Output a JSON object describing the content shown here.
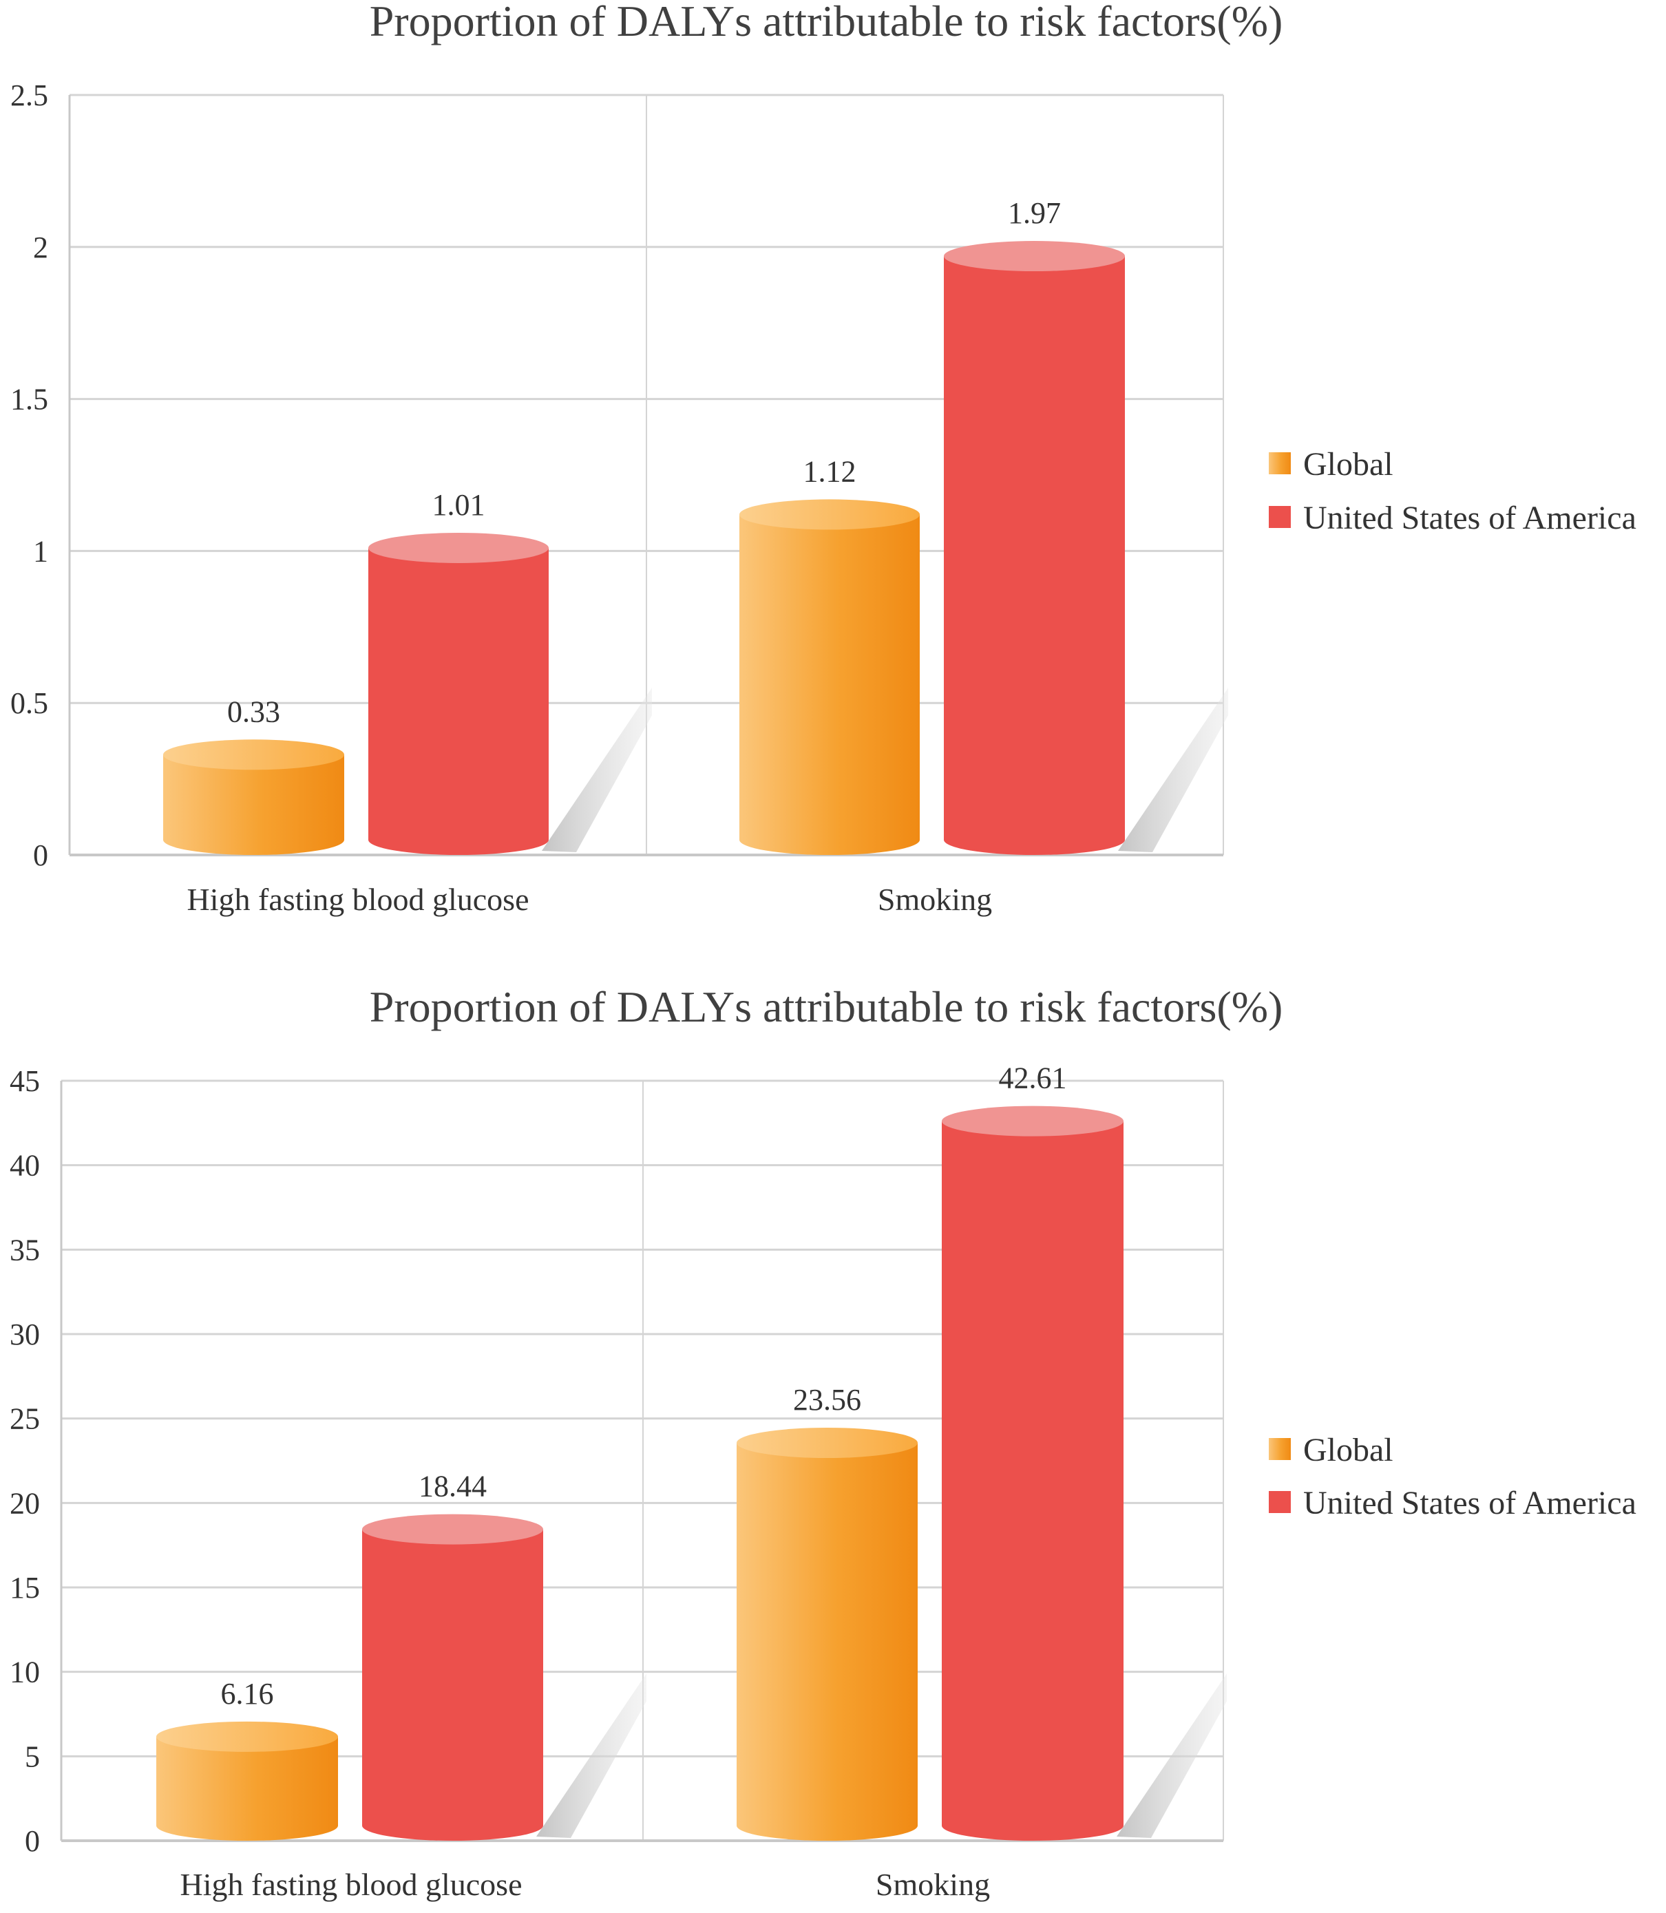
{
  "colors": {
    "global_light": "#fbc270",
    "global_dark": "#f18a12",
    "global_top": "#fab04a",
    "usa_body": "#ec504c",
    "usa_top": "#f09492",
    "grid": "#d4d4d4",
    "axis": "#c8c8c8",
    "shadow": "#c9c9c9"
  },
  "chart_data": [
    {
      "type": "bar",
      "style": "3d-cylinder",
      "title": "Proportion of DALYs attributable to risk factors(%)",
      "xlabel": "",
      "ylabel": "",
      "categories": [
        "High fasting blood glucose",
        "Smoking"
      ],
      "series": [
        {
          "name": "Global",
          "values": [
            0.33,
            1.12
          ],
          "color": "#f5a030"
        },
        {
          "name": "United States of America",
          "values": [
            1.01,
            1.97
          ],
          "color": "#ec504c"
        }
      ],
      "data_labels": [
        [
          "0.33",
          "1.12"
        ],
        [
          "1.01",
          "1.97"
        ]
      ],
      "ylim": [
        0,
        2.5
      ],
      "yticks": [
        0,
        0.5,
        1,
        1.5,
        2,
        2.5
      ],
      "ytick_labels": [
        "0",
        "0.5",
        "1",
        "1.5",
        "2",
        "2.5"
      ],
      "grid": true,
      "legend": "right"
    },
    {
      "type": "bar",
      "style": "3d-cylinder",
      "title": "Proportion of DALYs attributable to risk factors(%)",
      "xlabel": "",
      "ylabel": "",
      "categories": [
        "High fasting blood glucose",
        "Smoking"
      ],
      "series": [
        {
          "name": "Global",
          "values": [
            6.16,
            23.56
          ],
          "color": "#f5a030"
        },
        {
          "name": "United States of America",
          "values": [
            18.44,
            42.61
          ],
          "color": "#ec504c"
        }
      ],
      "data_labels": [
        [
          "6.16",
          "23.56"
        ],
        [
          "18.44",
          "42.61"
        ]
      ],
      "ylim": [
        0,
        45
      ],
      "yticks": [
        0,
        5,
        10,
        15,
        20,
        25,
        30,
        35,
        40,
        45
      ],
      "ytick_labels": [
        "0",
        "5",
        "10",
        "15",
        "20",
        "25",
        "30",
        "35",
        "40",
        "45"
      ],
      "grid": true,
      "legend": "right"
    }
  ]
}
